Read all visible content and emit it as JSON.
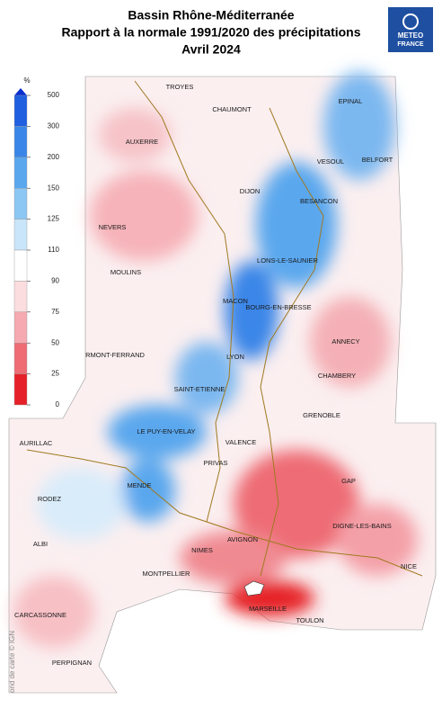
{
  "header": {
    "title_lines": [
      "Bassin Rhône-Méditerranée",
      "Rapport à la normale 1991/2020 des précipitations",
      "Avril 2024"
    ],
    "logo": [
      "METEO",
      "FRANCE"
    ]
  },
  "legend": {
    "unit": "%",
    "ticks": [
      500,
      300,
      200,
      150,
      125,
      110,
      90,
      75,
      50,
      25,
      0
    ],
    "colors": [
      "#1f5fe0",
      "#3a86e8",
      "#5aa7ee",
      "#8cc6f3",
      "#c8e5fa",
      "#ffffff",
      "#fbdde0",
      "#f5a9b0",
      "#ee6c74",
      "#e62028"
    ]
  },
  "cities": [
    "TROYES",
    "CHAUMONT",
    "EPINAL",
    "AUXERRE",
    "VESOUL",
    "BELFORT",
    "DIJON",
    "BESANCON",
    "NEVERS",
    "LONS-LE-SAUNIER",
    "MOULINS",
    "MACON",
    "BOURG-EN-BRESSE",
    "ANNECY",
    "RMONT-FERRAND",
    "LYON",
    "CHAMBERY",
    "SAINT-ETIENNE",
    "GRENOBLE",
    "LE PUY-EN-VELAY",
    "AURILLAC",
    "VALENCE",
    "PRIVAS",
    "GAP",
    "MENDE",
    "RODEZ",
    "DIGNE-LES-BAINS",
    "AVIGNON",
    "ALBI",
    "NIMES",
    "NICE",
    "MONTPELLIER",
    "CARCASSONNE",
    "MARSEILLE",
    "TOULON",
    "PERPIGNAN"
  ],
  "credit": "ond de carte © IGN"
}
